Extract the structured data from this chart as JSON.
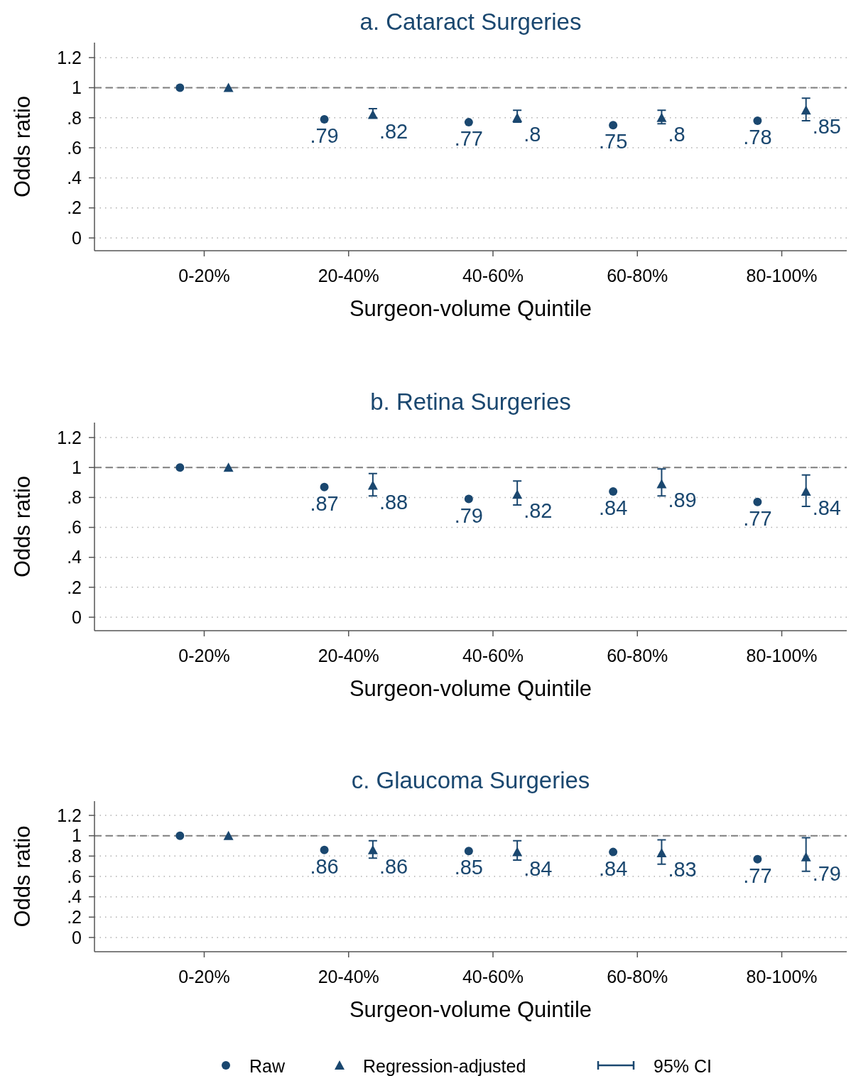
{
  "chart_data": [
    {
      "type": "scatter",
      "title": "a. Cataract Surgeries",
      "xlabel": "Surgeon-volume Quintile",
      "ylabel": "Odds ratio",
      "categories": [
        "0-20%",
        "20-40%",
        "40-60%",
        "60-80%",
        "80-100%"
      ],
      "ylim": [
        -0.085,
        1.3
      ],
      "yticks": [
        {
          "value": 0,
          "label": "0"
        },
        {
          "value": 0.2,
          "label": ".2"
        },
        {
          "value": 0.4,
          "label": ".4"
        },
        {
          "value": 0.6,
          "label": ".6"
        },
        {
          "value": 0.8,
          "label": ".8"
        },
        {
          "value": 1,
          "label": "1"
        },
        {
          "value": 1.2,
          "label": "1.2"
        }
      ],
      "grid": "y",
      "legend": false,
      "ref_lines": [
        {
          "axis": "y",
          "value": 1,
          "color": "#7f7f7f",
          "line_style": "dashed"
        }
      ],
      "series": [
        {
          "color": "#1a476f",
          "marker": "circle",
          "values": [
            1,
            0.79,
            0.77,
            0.75,
            0.78
          ],
          "value_labels": [
            null,
            ".79",
            ".77",
            ".75",
            ".78"
          ]
        },
        {
          "color": "#1a476f",
          "marker": "triangle",
          "values": [
            1,
            0.82,
            0.8,
            0.8,
            0.85
          ],
          "value_labels": [
            null,
            ".82",
            ".8",
            ".8",
            ".85"
          ],
          "errors": [
            null,
            [
              0.8,
              0.86
            ],
            [
              0.77,
              0.85
            ],
            [
              0.76,
              0.85
            ],
            [
              0.78,
              0.93
            ]
          ]
        }
      ]
    },
    {
      "type": "scatter",
      "title": "b. Retina Surgeries",
      "xlabel": "Surgeon-volume Quintile",
      "ylabel": "Odds ratio",
      "categories": [
        "0-20%",
        "20-40%",
        "40-60%",
        "60-80%",
        "80-100%"
      ],
      "ylim": [
        -0.09,
        1.3
      ],
      "yticks": [
        {
          "value": 0,
          "label": "0"
        },
        {
          "value": 0.2,
          "label": ".2"
        },
        {
          "value": 0.4,
          "label": ".4"
        },
        {
          "value": 0.6,
          "label": ".6"
        },
        {
          "value": 0.8,
          "label": ".8"
        },
        {
          "value": 1,
          "label": "1"
        },
        {
          "value": 1.2,
          "label": "1.2"
        }
      ],
      "grid": "y",
      "legend": false,
      "ref_lines": [
        {
          "axis": "y",
          "value": 1,
          "color": "#7f7f7f",
          "line_style": "dashed"
        }
      ],
      "series": [
        {
          "color": "#1a476f",
          "marker": "circle",
          "values": [
            1,
            0.87,
            0.79,
            0.84,
            0.77
          ],
          "value_labels": [
            null,
            ".87",
            ".79",
            ".84",
            ".77"
          ]
        },
        {
          "color": "#1a476f",
          "marker": "triangle",
          "values": [
            1,
            0.88,
            0.82,
            0.89,
            0.84
          ],
          "value_labels": [
            null,
            ".88",
            ".82",
            ".89",
            ".84"
          ],
          "errors": [
            null,
            [
              0.81,
              0.96
            ],
            [
              0.75,
              0.91
            ],
            [
              0.81,
              0.99
            ],
            [
              0.74,
              0.95
            ]
          ]
        }
      ]
    },
    {
      "type": "scatter",
      "title": "c. Glaucoma Surgeries",
      "xlabel": "Surgeon-volume Quintile",
      "ylabel": "Odds ratio",
      "categories": [
        "0-20%",
        "20-40%",
        "40-60%",
        "60-80%",
        "80-100%"
      ],
      "ylim": [
        -0.14,
        1.34
      ],
      "yticks": [
        {
          "value": 0,
          "label": "0"
        },
        {
          "value": 0.2,
          "label": ".2"
        },
        {
          "value": 0.4,
          "label": ".4"
        },
        {
          "value": 0.6,
          "label": ".6"
        },
        {
          "value": 0.8,
          "label": ".8"
        },
        {
          "value": 1,
          "label": "1"
        },
        {
          "value": 1.2,
          "label": "1.2"
        }
      ],
      "grid": "y",
      "legend": "bottom",
      "annotations": [
        "95% CI"
      ],
      "ref_lines": [
        {
          "axis": "y",
          "value": 1,
          "color": "#7f7f7f",
          "line_style": "dashed"
        }
      ],
      "series": [
        {
          "name": "Raw",
          "color": "#1a476f",
          "marker": "circle",
          "values": [
            1,
            0.86,
            0.85,
            0.84,
            0.77
          ],
          "value_labels": [
            null,
            ".86",
            ".85",
            ".84",
            ".77"
          ]
        },
        {
          "name": "Regression-adjusted",
          "color": "#1a476f",
          "marker": "triangle",
          "values": [
            1,
            0.86,
            0.84,
            0.83,
            0.79
          ],
          "value_labels": [
            null,
            ".86",
            ".84",
            ".83",
            ".79"
          ],
          "errors": [
            null,
            [
              0.78,
              0.95
            ],
            [
              0.76,
              0.95
            ],
            [
              0.72,
              0.96
            ],
            [
              0.65,
              0.98
            ]
          ]
        }
      ]
    }
  ]
}
